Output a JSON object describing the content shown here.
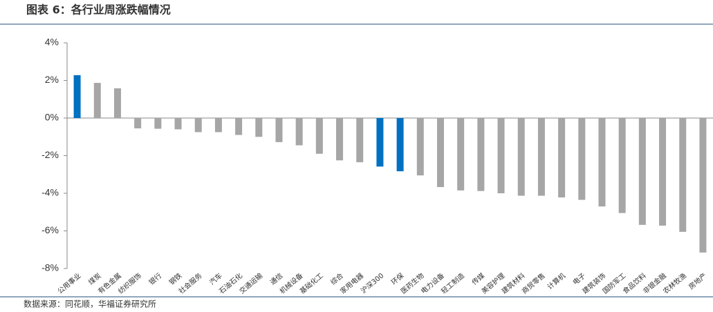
{
  "chart_data": {
    "type": "bar",
    "title": "图表 6：各行业周涨跌幅情况",
    "source": "数据来源：同花顺，华福证券研究所",
    "categories": [
      "公用事业",
      "煤炭",
      "有色金属",
      "纺织服饰",
      "银行",
      "钢铁",
      "社会服务",
      "汽车",
      "石油石化",
      "交通运输",
      "通信",
      "机械设备",
      "基础化工",
      "综合",
      "家用电器",
      "沪深300",
      "环保",
      "医药生物",
      "电力设备",
      "轻工制造",
      "传媒",
      "美容护理",
      "建筑材料",
      "商贸零售",
      "计算机",
      "电子",
      "建筑装饰",
      "国防军工",
      "食品饮料",
      "非银金融",
      "农林牧渔",
      "房地产"
    ],
    "values": [
      2.28,
      1.87,
      1.58,
      -0.55,
      -0.57,
      -0.6,
      -0.75,
      -0.75,
      -0.9,
      -1.0,
      -1.28,
      -1.45,
      -1.9,
      -2.25,
      -2.35,
      -2.58,
      -2.83,
      -3.05,
      -3.67,
      -3.85,
      -3.88,
      -4.0,
      -4.13,
      -4.13,
      -4.22,
      -4.35,
      -4.7,
      -5.05,
      -5.68,
      -5.72,
      -6.05,
      -7.15
    ],
    "colors": [
      "#0070c0",
      "#a6a6a6",
      "#a6a6a6",
      "#a6a6a6",
      "#a6a6a6",
      "#a6a6a6",
      "#a6a6a6",
      "#a6a6a6",
      "#a6a6a6",
      "#a6a6a6",
      "#a6a6a6",
      "#a6a6a6",
      "#a6a6a6",
      "#a6a6a6",
      "#a6a6a6",
      "#0070c0",
      "#0070c0",
      "#a6a6a6",
      "#a6a6a6",
      "#a6a6a6",
      "#a6a6a6",
      "#a6a6a6",
      "#a6a6a6",
      "#a6a6a6",
      "#a6a6a6",
      "#a6a6a6",
      "#a6a6a6",
      "#a6a6a6",
      "#a6a6a6",
      "#a6a6a6",
      "#a6a6a6",
      "#a6a6a6"
    ],
    "ylim": [
      -8,
      4
    ],
    "yticks": [
      {
        "value": -8,
        "label": "-8%"
      },
      {
        "value": -6,
        "label": "-6%"
      },
      {
        "value": -4,
        "label": "-4%"
      },
      {
        "value": -2,
        "label": "-2%"
      },
      {
        "value": 0,
        "label": "0%"
      },
      {
        "value": 2,
        "label": "2%"
      },
      {
        "value": 4,
        "label": "4%"
      }
    ],
    "grid": false
  }
}
